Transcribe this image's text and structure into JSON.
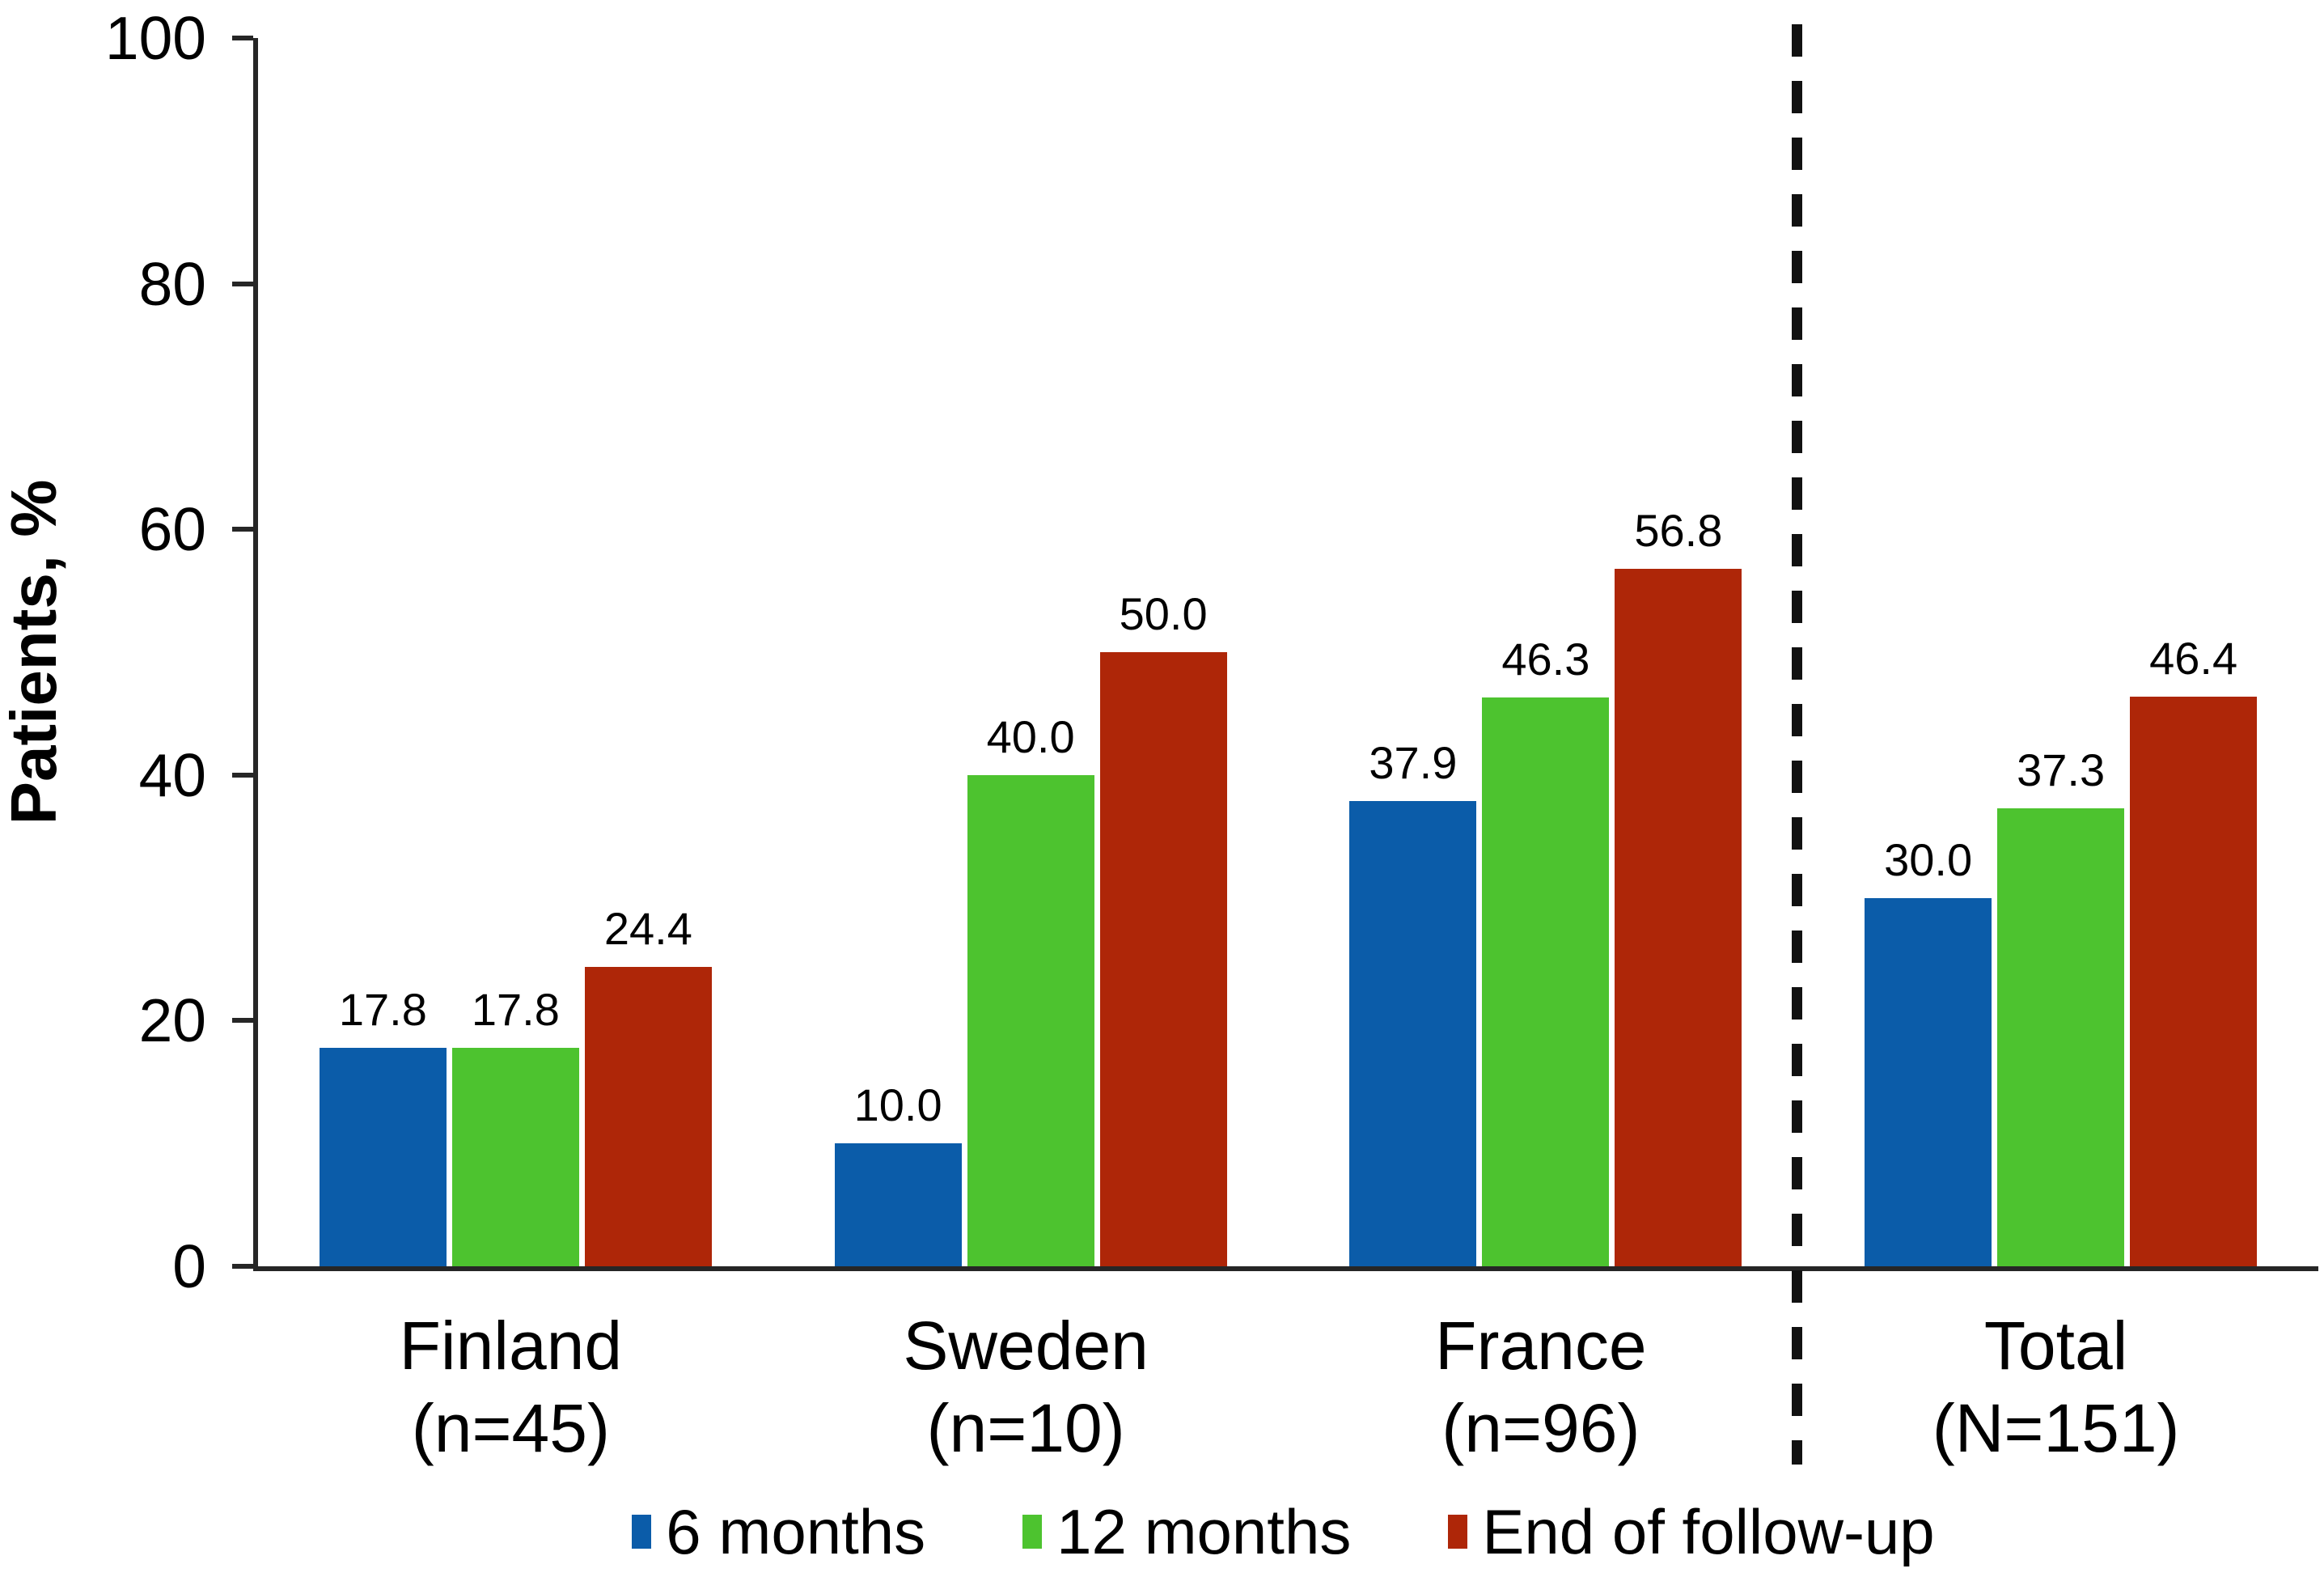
{
  "chart_data": {
    "type": "bar",
    "title": "",
    "xlabel": "",
    "ylabel": "Patients, %",
    "ylim": [
      0,
      100
    ],
    "yticks": [
      0,
      20,
      40,
      60,
      80,
      100
    ],
    "grid": false,
    "legend_position": "bottom",
    "categories": [
      {
        "label": "Finland",
        "sublabel": "(n=45)"
      },
      {
        "label": "Sweden",
        "sublabel": "(n=10)"
      },
      {
        "label": "France",
        "sublabel": "(n=96)"
      },
      {
        "label": "Total",
        "sublabel": "(N=151)"
      }
    ],
    "separator_after_category_index": 2,
    "series": [
      {
        "name": "6 months",
        "color": "#0B5CA9",
        "values": [
          17.8,
          10.0,
          37.9,
          30.0
        ]
      },
      {
        "name": "12 months",
        "color": "#4DC32F",
        "values": [
          17.8,
          40.0,
          46.3,
          37.3
        ]
      },
      {
        "name": "End of follow-up",
        "color": "#AE2608",
        "values": [
          24.4,
          50.0,
          56.8,
          46.4
        ]
      }
    ],
    "value_label_decimals": 1
  },
  "style_colors": {
    "axis": "#262626",
    "separator": "#111111",
    "text": "#000000",
    "background": "#ffffff"
  }
}
